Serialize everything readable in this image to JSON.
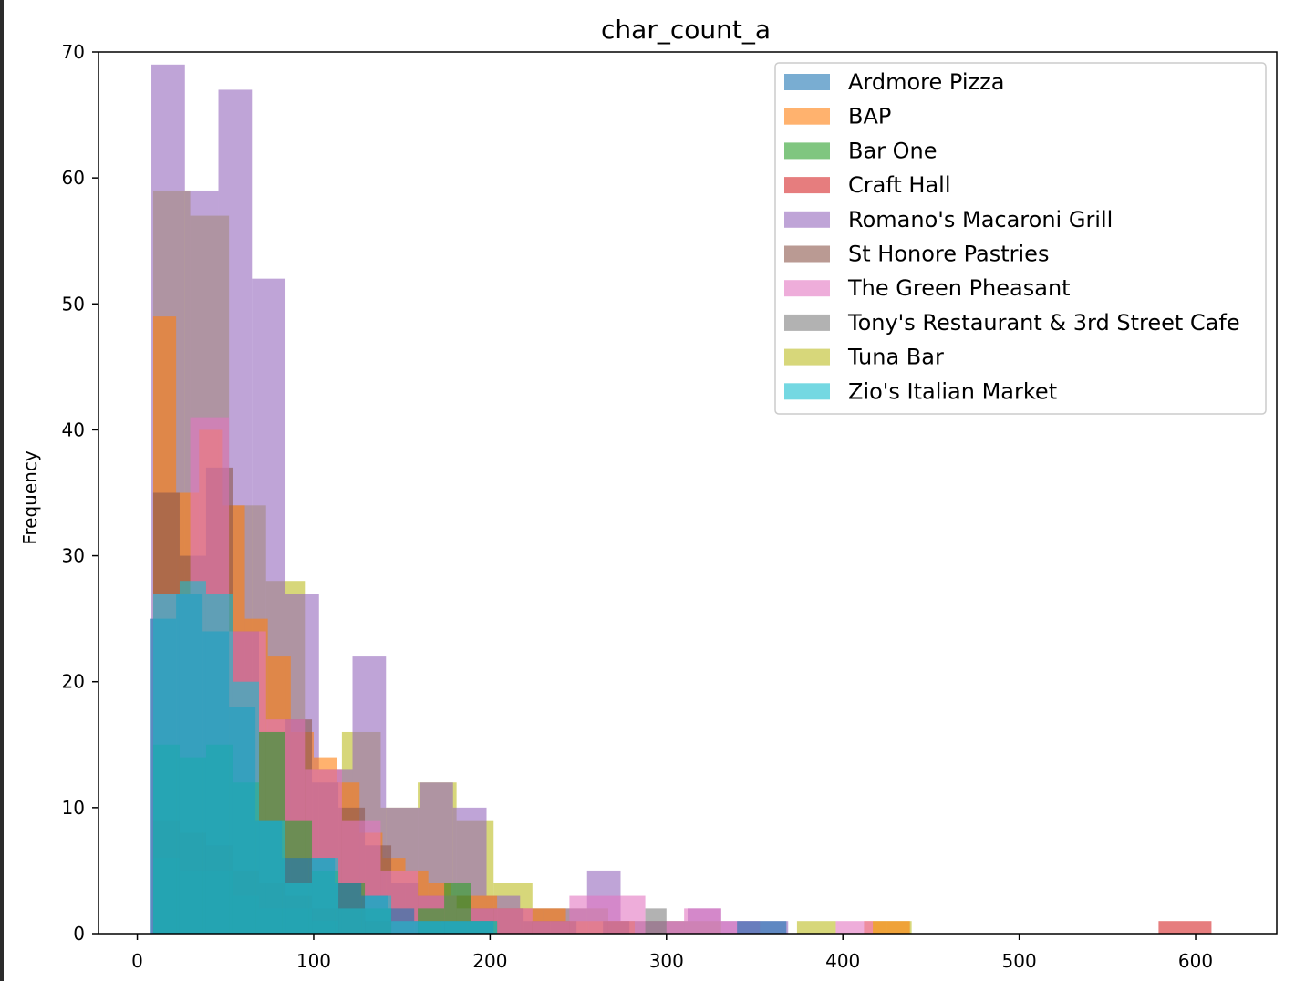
{
  "chart_data": {
    "type": "histogram",
    "title": "char_count_a",
    "xlabel": "",
    "ylabel": "Frequency",
    "xlim": [
      -22,
      646
    ],
    "ylim": [
      0,
      70
    ],
    "xticks": [
      0,
      100,
      200,
      300,
      400,
      500,
      600
    ],
    "yticks": [
      0,
      10,
      20,
      30,
      40,
      50,
      60,
      70
    ],
    "grid": false,
    "legend": "top-right",
    "bar_opacity": 0.6,
    "series": [
      {
        "name": "Tuna Bar",
        "color": "#bcbd22",
        "bins": [
          {
            "x0": 9,
            "x1": 30,
            "y": 59
          },
          {
            "x0": 30,
            "x1": 52,
            "y": 57
          },
          {
            "x0": 52,
            "x1": 73,
            "y": 34
          },
          {
            "x0": 73,
            "x1": 95,
            "y": 28
          },
          {
            "x0": 95,
            "x1": 116,
            "y": 13
          },
          {
            "x0": 116,
            "x1": 138,
            "y": 16
          },
          {
            "x0": 138,
            "x1": 159,
            "y": 10
          },
          {
            "x0": 159,
            "x1": 181,
            "y": 12
          },
          {
            "x0": 181,
            "x1": 202,
            "y": 9
          },
          {
            "x0": 202,
            "x1": 224,
            "y": 4
          },
          {
            "x0": 224,
            "x1": 245,
            "y": 2
          },
          {
            "x0": 245,
            "x1": 267,
            "y": 2
          },
          {
            "x0": 267,
            "x1": 288,
            "y": 1
          },
          {
            "x0": 288,
            "x1": 310,
            "y": 1
          },
          {
            "x0": 310,
            "x1": 331,
            "y": 1
          },
          {
            "x0": 374,
            "x1": 396,
            "y": 1
          },
          {
            "x0": 417,
            "x1": 439,
            "y": 1
          }
        ]
      },
      {
        "name": "Romano's Macaroni Grill",
        "color": "#9467bd",
        "bins": [
          {
            "x0": 8,
            "x1": 27,
            "y": 69
          },
          {
            "x0": 27,
            "x1": 46,
            "y": 59
          },
          {
            "x0": 46,
            "x1": 65,
            "y": 67
          },
          {
            "x0": 65,
            "x1": 84,
            "y": 52
          },
          {
            "x0": 84,
            "x1": 103,
            "y": 27
          },
          {
            "x0": 103,
            "x1": 122,
            "y": 13
          },
          {
            "x0": 122,
            "x1": 141,
            "y": 22
          },
          {
            "x0": 141,
            "x1": 160,
            "y": 10
          },
          {
            "x0": 160,
            "x1": 179,
            "y": 12
          },
          {
            "x0": 179,
            "x1": 198,
            "y": 10
          },
          {
            "x0": 198,
            "x1": 217,
            "y": 3
          },
          {
            "x0": 217,
            "x1": 236,
            "y": 2
          },
          {
            "x0": 236,
            "x1": 255,
            "y": 2
          },
          {
            "x0": 255,
            "x1": 274,
            "y": 5
          },
          {
            "x0": 274,
            "x1": 293,
            "y": 1
          },
          {
            "x0": 293,
            "x1": 312,
            "y": 1
          },
          {
            "x0": 312,
            "x1": 331,
            "y": 2
          },
          {
            "x0": 331,
            "x1": 350,
            "y": 1
          },
          {
            "x0": 350,
            "x1": 369,
            "y": 1
          }
        ]
      },
      {
        "name": "BAP",
        "color": "#ff7f0e",
        "bins": [
          {
            "x0": 9,
            "x1": 22,
            "y": 49
          },
          {
            "x0": 22,
            "x1": 35,
            "y": 35
          },
          {
            "x0": 35,
            "x1": 48,
            "y": 40
          },
          {
            "x0": 48,
            "x1": 61,
            "y": 34
          },
          {
            "x0": 61,
            "x1": 74,
            "y": 25
          },
          {
            "x0": 74,
            "x1": 87,
            "y": 22
          },
          {
            "x0": 87,
            "x1": 100,
            "y": 16
          },
          {
            "x0": 100,
            "x1": 113,
            "y": 14
          },
          {
            "x0": 113,
            "x1": 126,
            "y": 12
          },
          {
            "x0": 126,
            "x1": 139,
            "y": 8
          },
          {
            "x0": 139,
            "x1": 152,
            "y": 6
          },
          {
            "x0": 152,
            "x1": 165,
            "y": 5
          },
          {
            "x0": 165,
            "x1": 178,
            "y": 4
          },
          {
            "x0": 178,
            "x1": 191,
            "y": 3
          },
          {
            "x0": 191,
            "x1": 204,
            "y": 3
          },
          {
            "x0": 204,
            "x1": 217,
            "y": 2
          },
          {
            "x0": 217,
            "x1": 230,
            "y": 2
          },
          {
            "x0": 230,
            "x1": 243,
            "y": 2
          },
          {
            "x0": 243,
            "x1": 256,
            "y": 1
          },
          {
            "x0": 256,
            "x1": 269,
            "y": 1
          },
          {
            "x0": 269,
            "x1": 282,
            "y": 1
          },
          {
            "x0": 412,
            "x1": 425,
            "y": 1
          },
          {
            "x0": 425,
            "x1": 438,
            "y": 1
          }
        ]
      },
      {
        "name": "St Honore Pastries",
        "color": "#8c564b",
        "bins": [
          {
            "x0": 9,
            "x1": 24,
            "y": 35
          },
          {
            "x0": 24,
            "x1": 39,
            "y": 30
          },
          {
            "x0": 39,
            "x1": 54,
            "y": 37
          },
          {
            "x0": 54,
            "x1": 69,
            "y": 24
          },
          {
            "x0": 69,
            "x1": 84,
            "y": 16
          },
          {
            "x0": 84,
            "x1": 99,
            "y": 17
          },
          {
            "x0": 99,
            "x1": 114,
            "y": 12
          },
          {
            "x0": 114,
            "x1": 129,
            "y": 10
          },
          {
            "x0": 129,
            "x1": 144,
            "y": 7
          },
          {
            "x0": 144,
            "x1": 159,
            "y": 4
          },
          {
            "x0": 159,
            "x1": 174,
            "y": 3
          },
          {
            "x0": 174,
            "x1": 189,
            "y": 3
          },
          {
            "x0": 189,
            "x1": 204,
            "y": 2
          },
          {
            "x0": 204,
            "x1": 219,
            "y": 2
          },
          {
            "x0": 219,
            "x1": 234,
            "y": 1
          },
          {
            "x0": 234,
            "x1": 249,
            "y": 1
          },
          {
            "x0": 264,
            "x1": 279,
            "y": 1
          }
        ]
      },
      {
        "name": "The Green Pheasant",
        "color": "#e377c2",
        "bins": [
          {
            "x0": 9,
            "x1": 30,
            "y": 27
          },
          {
            "x0": 30,
            "x1": 52,
            "y": 41
          },
          {
            "x0": 52,
            "x1": 73,
            "y": 24
          },
          {
            "x0": 73,
            "x1": 95,
            "y": 17
          },
          {
            "x0": 95,
            "x1": 116,
            "y": 13
          },
          {
            "x0": 116,
            "x1": 138,
            "y": 9
          },
          {
            "x0": 138,
            "x1": 159,
            "y": 5
          },
          {
            "x0": 159,
            "x1": 181,
            "y": 3
          },
          {
            "x0": 181,
            "x1": 202,
            "y": 2
          },
          {
            "x0": 202,
            "x1": 224,
            "y": 2
          },
          {
            "x0": 224,
            "x1": 245,
            "y": 1
          },
          {
            "x0": 245,
            "x1": 267,
            "y": 3
          },
          {
            "x0": 267,
            "x1": 288,
            "y": 3
          },
          {
            "x0": 288,
            "x1": 310,
            "y": 1
          },
          {
            "x0": 310,
            "x1": 331,
            "y": 2
          },
          {
            "x0": 331,
            "x1": 353,
            "y": 1
          },
          {
            "x0": 396,
            "x1": 417,
            "y": 1
          }
        ]
      },
      {
        "name": "Craft Hall",
        "color": "#d62728",
        "bins": [
          {
            "x0": 9,
            "x1": 24,
            "y": 9
          },
          {
            "x0": 24,
            "x1": 39,
            "y": 8
          },
          {
            "x0": 39,
            "x1": 54,
            "y": 7
          },
          {
            "x0": 54,
            "x1": 69,
            "y": 5
          },
          {
            "x0": 69,
            "x1": 84,
            "y": 4
          },
          {
            "x0": 84,
            "x1": 99,
            "y": 3
          },
          {
            "x0": 99,
            "x1": 114,
            "y": 2
          },
          {
            "x0": 114,
            "x1": 129,
            "y": 2
          },
          {
            "x0": 129,
            "x1": 144,
            "y": 1
          },
          {
            "x0": 579,
            "x1": 609,
            "y": 1
          }
        ]
      },
      {
        "name": "Tony's Restaurant & 3rd Street Cafe",
        "color": "#7f7f7f",
        "bins": [
          {
            "x0": 9,
            "x1": 24,
            "y": 6
          },
          {
            "x0": 24,
            "x1": 39,
            "y": 5
          },
          {
            "x0": 39,
            "x1": 54,
            "y": 5
          },
          {
            "x0": 54,
            "x1": 69,
            "y": 3
          },
          {
            "x0": 69,
            "x1": 84,
            "y": 2
          },
          {
            "x0": 84,
            "x1": 99,
            "y": 2
          },
          {
            "x0": 99,
            "x1": 114,
            "y": 1
          },
          {
            "x0": 288,
            "x1": 300,
            "y": 2
          }
        ]
      },
      {
        "name": "Bar One",
        "color": "#2ca02c",
        "bins": [
          {
            "x0": 9,
            "x1": 24,
            "y": 15
          },
          {
            "x0": 24,
            "x1": 39,
            "y": 14
          },
          {
            "x0": 39,
            "x1": 54,
            "y": 15
          },
          {
            "x0": 54,
            "x1": 69,
            "y": 12
          },
          {
            "x0": 69,
            "x1": 84,
            "y": 16
          },
          {
            "x0": 84,
            "x1": 99,
            "y": 9
          },
          {
            "x0": 99,
            "x1": 114,
            "y": 5
          },
          {
            "x0": 114,
            "x1": 129,
            "y": 4
          },
          {
            "x0": 129,
            "x1": 144,
            "y": 2
          },
          {
            "x0": 159,
            "x1": 174,
            "y": 2
          },
          {
            "x0": 174,
            "x1": 189,
            "y": 4
          },
          {
            "x0": 189,
            "x1": 204,
            "y": 1
          }
        ]
      },
      {
        "name": "Ardmore Pizza",
        "color": "#1f77b4",
        "bins": [
          {
            "x0": 7,
            "x1": 22,
            "y": 25
          },
          {
            "x0": 22,
            "x1": 37,
            "y": 27
          },
          {
            "x0": 37,
            "x1": 52,
            "y": 24
          },
          {
            "x0": 52,
            "x1": 67,
            "y": 18
          },
          {
            "x0": 67,
            "x1": 82,
            "y": 9
          },
          {
            "x0": 82,
            "x1": 97,
            "y": 6
          },
          {
            "x0": 97,
            "x1": 112,
            "y": 6
          },
          {
            "x0": 112,
            "x1": 127,
            "y": 4
          },
          {
            "x0": 127,
            "x1": 142,
            "y": 3
          },
          {
            "x0": 142,
            "x1": 157,
            "y": 2
          },
          {
            "x0": 157,
            "x1": 172,
            "y": 1
          },
          {
            "x0": 172,
            "x1": 187,
            "y": 1
          },
          {
            "x0": 187,
            "x1": 202,
            "y": 1
          },
          {
            "x0": 340,
            "x1": 368,
            "y": 1
          }
        ]
      },
      {
        "name": "Zio's Italian Market",
        "color": "#17becf",
        "bins": [
          {
            "x0": 9,
            "x1": 24,
            "y": 27
          },
          {
            "x0": 24,
            "x1": 39,
            "y": 28
          },
          {
            "x0": 39,
            "x1": 54,
            "y": 27
          },
          {
            "x0": 54,
            "x1": 69,
            "y": 20
          },
          {
            "x0": 69,
            "x1": 84,
            "y": 9
          },
          {
            "x0": 84,
            "x1": 99,
            "y": 4
          },
          {
            "x0": 99,
            "x1": 114,
            "y": 6
          },
          {
            "x0": 114,
            "x1": 129,
            "y": 2
          },
          {
            "x0": 129,
            "x1": 144,
            "y": 3
          },
          {
            "x0": 144,
            "x1": 159,
            "y": 1
          },
          {
            "x0": 159,
            "x1": 174,
            "y": 1
          },
          {
            "x0": 174,
            "x1": 189,
            "y": 1
          },
          {
            "x0": 189,
            "x1": 204,
            "y": 1
          }
        ]
      }
    ],
    "legend_entries": [
      {
        "name": "Ardmore Pizza",
        "color": "#1f77b4"
      },
      {
        "name": "BAP",
        "color": "#ff7f0e"
      },
      {
        "name": "Bar One",
        "color": "#2ca02c"
      },
      {
        "name": "Craft Hall",
        "color": "#d62728"
      },
      {
        "name": "Romano's Macaroni Grill",
        "color": "#9467bd"
      },
      {
        "name": "St Honore Pastries",
        "color": "#8c564b"
      },
      {
        "name": "The Green Pheasant",
        "color": "#e377c2"
      },
      {
        "name": "Tony's Restaurant & 3rd Street Cafe",
        "color": "#7f7f7f"
      },
      {
        "name": "Tuna Bar",
        "color": "#bcbd22"
      },
      {
        "name": "Zio's Italian Market",
        "color": "#17becf"
      }
    ]
  }
}
